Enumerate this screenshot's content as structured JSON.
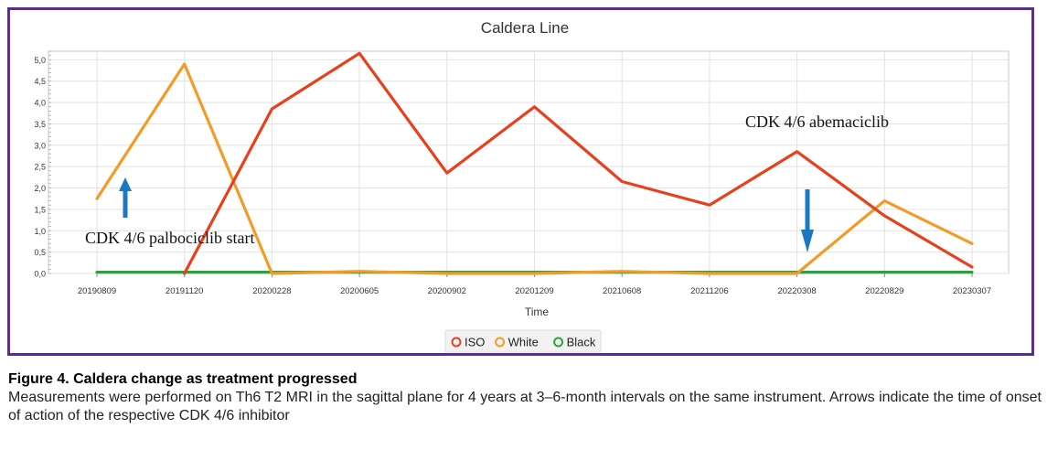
{
  "chart_data": {
    "type": "line",
    "title": "Caldera Line",
    "xlabel": "Time",
    "ylabel": "",
    "ylim": [
      0,
      5.2
    ],
    "grid": true,
    "legend_placement": "bottom",
    "categories": [
      "20190809",
      "20191120",
      "20200228",
      "20200605",
      "20200902",
      "20201209",
      "20210608",
      "20211206",
      "20220308",
      "20220829",
      "20230307"
    ],
    "y_ticks": [
      "0,0",
      "0,5",
      "1,0",
      "1,5",
      "2,0",
      "2,5",
      "3,0",
      "3,5",
      "4,0",
      "4,5",
      "5,0"
    ],
    "series": [
      {
        "name": "ISO",
        "color": "#e8401c",
        "values": [
          null,
          0.0,
          3.85,
          5.15,
          2.35,
          3.9,
          2.15,
          1.6,
          2.85,
          1.35,
          0.15
        ]
      },
      {
        "name": "White",
        "color": "#f39b26",
        "values": [
          1.75,
          4.9,
          0.0,
          0.05,
          0.0,
          0.0,
          0.05,
          0.0,
          0.0,
          1.7,
          0.7
        ]
      },
      {
        "name": "Black",
        "color": "#2aa33e",
        "values": [
          0.03,
          0.03,
          0.03,
          0.03,
          0.03,
          0.03,
          0.03,
          0.03,
          0.03,
          0.03,
          0.03
        ]
      }
    ],
    "annotations": [
      {
        "text": "CDK 4/6 palbociclib start",
        "arrow": "up",
        "at": "20190809"
      },
      {
        "text": "CDK 4/6 abemaciclib",
        "arrow": "down",
        "at": "20220308"
      }
    ]
  },
  "caption": {
    "title": "Figure 4. Caldera change as treatment progressed",
    "body": "Measurements were performed on Th6 T2 MRI in the sagittal plane for 4 years at 3–6-month intervals on the same instrument. Arrows indicate the time of onset of action of the respective CDK 4/6 inhibitor"
  },
  "colors": {
    "frame": "#5b2d8a",
    "arrow": "#1b78c2"
  }
}
